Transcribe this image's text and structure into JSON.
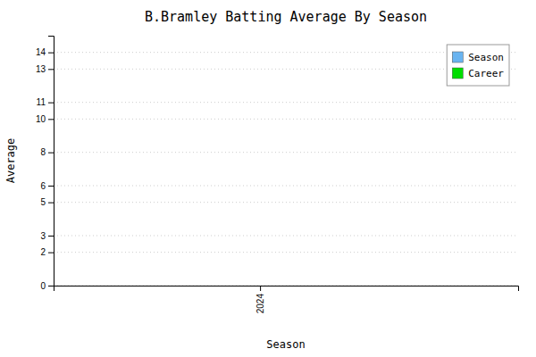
{
  "chart_data": {
    "type": "bar",
    "title": "B.Bramley Batting Average By Season",
    "xlabel": "Season",
    "ylabel": "Average",
    "x": [],
    "series": [
      {
        "name": "Season",
        "color": "#6ab4f0",
        "values": []
      },
      {
        "name": "Career",
        "color": "#00dd00",
        "values": []
      }
    ],
    "xlim": [
      2023.6,
      2024.5
    ],
    "xticks": [
      2024
    ],
    "ylim": [
      0,
      15
    ],
    "yticks": [
      0,
      2,
      3,
      5,
      6,
      8,
      10,
      11,
      13,
      14
    ],
    "grid": true,
    "legend": "upper right"
  }
}
